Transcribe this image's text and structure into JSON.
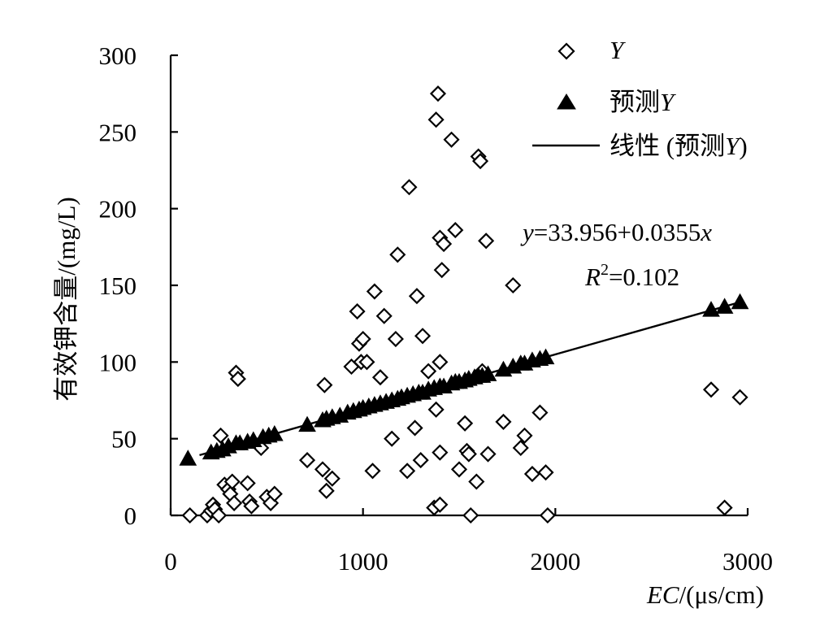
{
  "chart_data": {
    "type": "scatter",
    "ylabel": "有效钾含量/(mg/L)",
    "xlabel_var": "EC",
    "xlabel_unit": "/(μs/cm)",
    "xlim": [
      0,
      3000
    ],
    "ylim": [
      0,
      300
    ],
    "x_ticks": [
      "0",
      "1000",
      "2000",
      "3000"
    ],
    "y_ticks": [
      "0",
      "50",
      "100",
      "150",
      "200",
      "250",
      "300"
    ],
    "grid": false,
    "legend_position": "top-right",
    "legend": {
      "observed": "Y",
      "predicted_prefix": "预测",
      "predicted_var": "Y",
      "line_prefix": "线性 (预测",
      "line_var": "Y",
      "line_suffix": ")"
    },
    "annotation": {
      "equation_var_y": "y",
      "equation_body": "=33.956+0.0355",
      "equation_var_x": "x",
      "r2_var": "R",
      "r2_sup": "2",
      "r2_body": "=0.102"
    },
    "trendline": {
      "intercept": 33.956,
      "slope": 0.0355,
      "x_range": [
        150,
        2950
      ]
    },
    "series": [
      {
        "name": "Y",
        "marker": "open-diamond",
        "points": [
          [
            100,
            0
          ],
          [
            190,
            0
          ],
          [
            210,
            3
          ],
          [
            220,
            7
          ],
          [
            230,
            4
          ],
          [
            250,
            0
          ],
          [
            260,
            52
          ],
          [
            280,
            20
          ],
          [
            300,
            17
          ],
          [
            310,
            14
          ],
          [
            320,
            22
          ],
          [
            330,
            8
          ],
          [
            340,
            93
          ],
          [
            350,
            89
          ],
          [
            400,
            21
          ],
          [
            410,
            9
          ],
          [
            420,
            6
          ],
          [
            470,
            44
          ],
          [
            500,
            12
          ],
          [
            520,
            8
          ],
          [
            540,
            14
          ],
          [
            710,
            36
          ],
          [
            790,
            30
          ],
          [
            800,
            85
          ],
          [
            810,
            16
          ],
          [
            840,
            24
          ],
          [
            940,
            97
          ],
          [
            970,
            133
          ],
          [
            980,
            112
          ],
          [
            990,
            100
          ],
          [
            1000,
            115
          ],
          [
            1020,
            100
          ],
          [
            1050,
            29
          ],
          [
            1060,
            146
          ],
          [
            1090,
            90
          ],
          [
            1110,
            130
          ],
          [
            1150,
            50
          ],
          [
            1170,
            115
          ],
          [
            1180,
            170
          ],
          [
            1230,
            29
          ],
          [
            1240,
            214
          ],
          [
            1270,
            57
          ],
          [
            1280,
            143
          ],
          [
            1300,
            36
          ],
          [
            1310,
            117
          ],
          [
            1340,
            94
          ],
          [
            1370,
            5
          ],
          [
            1380,
            69
          ],
          [
            1380,
            258
          ],
          [
            1390,
            275
          ],
          [
            1400,
            7
          ],
          [
            1400,
            41
          ],
          [
            1400,
            100
          ],
          [
            1400,
            181
          ],
          [
            1410,
            160
          ],
          [
            1420,
            177
          ],
          [
            1460,
            245
          ],
          [
            1480,
            186
          ],
          [
            1500,
            30
          ],
          [
            1530,
            60
          ],
          [
            1540,
            42
          ],
          [
            1550,
            40
          ],
          [
            1560,
            0
          ],
          [
            1590,
            22
          ],
          [
            1600,
            234
          ],
          [
            1610,
            231
          ],
          [
            1620,
            94
          ],
          [
            1640,
            179
          ],
          [
            1650,
            40
          ],
          [
            1730,
            61
          ],
          [
            1780,
            150
          ],
          [
            1820,
            44
          ],
          [
            1840,
            52
          ],
          [
            1880,
            27
          ],
          [
            1920,
            67
          ],
          [
            1950,
            28
          ],
          [
            1960,
            0
          ],
          [
            2810,
            82
          ],
          [
            2880,
            5
          ],
          [
            2960,
            77
          ]
        ]
      },
      {
        "name": "预测Y",
        "marker": "filled-triangle",
        "points": [
          [
            90,
            37
          ],
          [
            210,
            41
          ],
          [
            240,
            42
          ],
          [
            270,
            43
          ],
          [
            300,
            45
          ],
          [
            340,
            47
          ],
          [
            360,
            47
          ],
          [
            400,
            48
          ],
          [
            430,
            49
          ],
          [
            480,
            51
          ],
          [
            510,
            52
          ],
          [
            540,
            53
          ],
          [
            710,
            59
          ],
          [
            790,
            62
          ],
          [
            810,
            63
          ],
          [
            840,
            64
          ],
          [
            880,
            65
          ],
          [
            920,
            67
          ],
          [
            950,
            68
          ],
          [
            980,
            69
          ],
          [
            1000,
            70
          ],
          [
            1030,
            71
          ],
          [
            1060,
            72
          ],
          [
            1090,
            73
          ],
          [
            1120,
            74
          ],
          [
            1150,
            75
          ],
          [
            1180,
            76
          ],
          [
            1200,
            77
          ],
          [
            1230,
            78
          ],
          [
            1260,
            79
          ],
          [
            1290,
            80
          ],
          [
            1310,
            80
          ],
          [
            1340,
            82
          ],
          [
            1370,
            83
          ],
          [
            1400,
            84
          ],
          [
            1420,
            84
          ],
          [
            1460,
            86
          ],
          [
            1480,
            87
          ],
          [
            1500,
            87
          ],
          [
            1530,
            88
          ],
          [
            1550,
            89
          ],
          [
            1580,
            90
          ],
          [
            1600,
            91
          ],
          [
            1620,
            91
          ],
          [
            1650,
            92
          ],
          [
            1730,
            95
          ],
          [
            1780,
            97
          ],
          [
            1820,
            99
          ],
          [
            1840,
            99
          ],
          [
            1880,
            101
          ],
          [
            1920,
            102
          ],
          [
            1950,
            103
          ],
          [
            2810,
            134
          ],
          [
            2880,
            136
          ],
          [
            2960,
            139
          ]
        ]
      }
    ]
  }
}
